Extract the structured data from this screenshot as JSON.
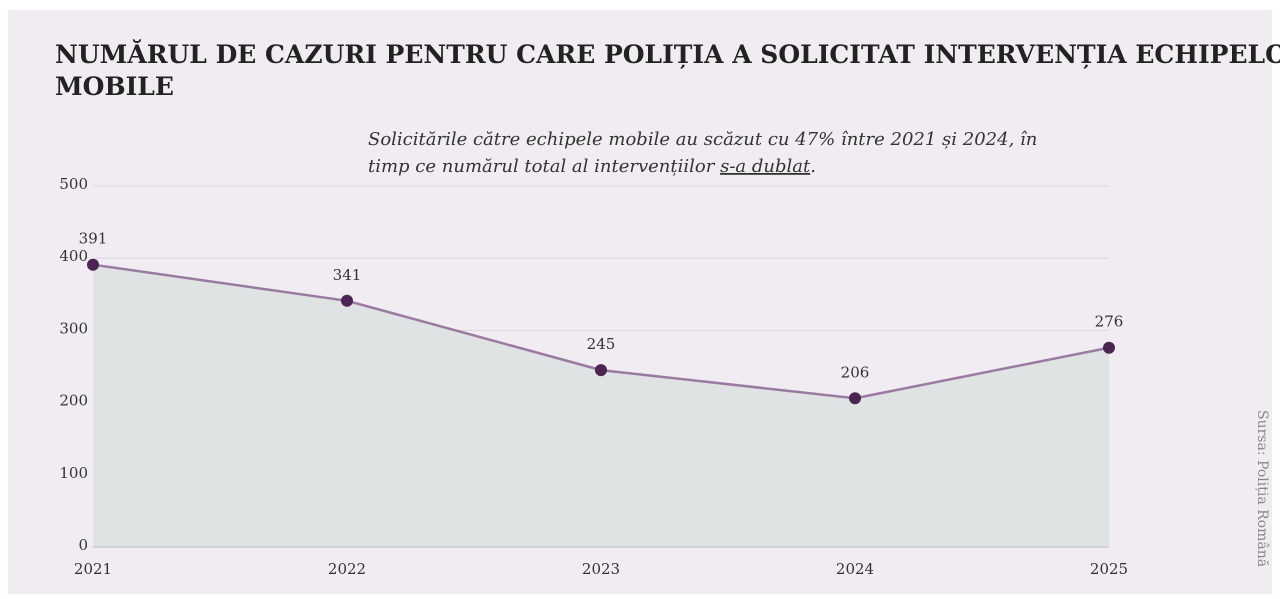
{
  "chart_data": {
    "type": "area-line",
    "title": "NUMĂRUL DE CAZURI PENTRU CARE POLIȚIA A SOLICITAT INTERVENȚIA ECHIPELOR MOBILE",
    "annotation": {
      "line1": "Solicitările către echipele mobile au scăzut cu 47% între 2021 și 2024, în",
      "line2": "timp ce numărul total al intervențiilor ",
      "link": "s-a dublat",
      "end": "."
    },
    "source": "Sursa: Poliția Română",
    "categories": [
      "2021",
      "2022",
      "2023",
      "2024",
      "2025"
    ],
    "values": [
      391,
      341,
      245,
      206,
      276
    ],
    "line_color": "#9a7aa0",
    "marker_color": "#4b2452",
    "area_color": "#e0e3e3",
    "ylim": [
      0,
      500
    ],
    "yticks": [
      0,
      100,
      200,
      300,
      400,
      500
    ],
    "grid": true
  }
}
